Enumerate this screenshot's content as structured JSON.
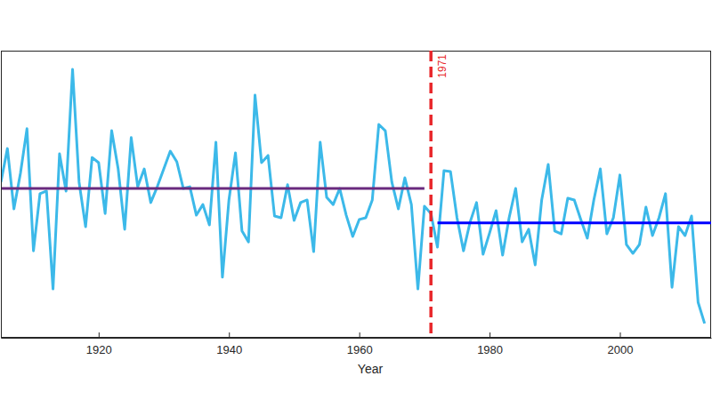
{
  "chart_data": {
    "type": "line",
    "xlabel": "Year",
    "xlim": [
      1905,
      2014
    ],
    "ylim": [
      0,
      100
    ],
    "xticks": [
      1920,
      1940,
      1960,
      1980,
      2000
    ],
    "tick_labels": "x",
    "grid": false,
    "series": [
      {
        "color": "#3cb9e9",
        "line_style": "solid",
        "x": [
          1905,
          1906,
          1907,
          1908,
          1909,
          1910,
          1911,
          1912,
          1913,
          1914,
          1915,
          1916,
          1917,
          1918,
          1919,
          1920,
          1921,
          1922,
          1923,
          1924,
          1925,
          1926,
          1927,
          1928,
          1929,
          1930,
          1931,
          1932,
          1933,
          1934,
          1935,
          1936,
          1937,
          1938,
          1939,
          1940,
          1941,
          1942,
          1943,
          1944,
          1945,
          1946,
          1947,
          1948,
          1949,
          1950,
          1951,
          1952,
          1953,
          1954,
          1955,
          1956,
          1957,
          1958,
          1959,
          1960,
          1961,
          1962,
          1963,
          1964,
          1965,
          1966,
          1967,
          1968,
          1969,
          1970,
          1971,
          1972,
          1973,
          1974,
          1975,
          1976,
          1977,
          1978,
          1979,
          1980,
          1981,
          1982,
          1983,
          1984,
          1985,
          1986,
          1987,
          1988,
          1989,
          1990,
          1991,
          1992,
          1993,
          1994,
          1995,
          1996,
          1997,
          1998,
          1999,
          2000,
          2001,
          2002,
          2003,
          2004,
          2005,
          2006,
          2007,
          2008,
          2009,
          2010,
          2011,
          2012,
          2013
        ],
        "values": [
          54.2,
          65.9,
          44.9,
          57.3,
          72.8,
          30.3,
          50.2,
          51.1,
          17,
          64.1,
          51.1,
          93.5,
          54.2,
          38.7,
          62.8,
          61,
          43.3,
          72.1,
          58.8,
          37.8,
          69.7,
          52.6,
          58.8,
          47.1,
          52.6,
          58.8,
          65,
          61.3,
          52,
          52.6,
          42.7,
          46.4,
          39.3,
          68.1,
          21.1,
          48,
          64.4,
          37.2,
          33.4,
          84.5,
          61,
          63.5,
          42.4,
          41.8,
          53.3,
          40.9,
          47.1,
          48,
          30,
          68.1,
          48.9,
          46.4,
          52,
          42.7,
          35.3,
          41.2,
          41.8,
          48,
          74.3,
          72.1,
          54.2,
          44.9,
          55.7,
          46.4,
          17,
          45.8,
          43.3,
          31.6,
          58.2,
          57.9,
          41.8,
          30.3,
          40.2,
          47.1,
          29.1,
          36.5,
          44.3,
          28.8,
          41.8,
          52,
          33.4,
          37.8,
          25.4,
          48,
          60.4,
          37.2,
          36.2,
          48.6,
          48,
          41.2,
          34.7,
          48,
          58.8,
          36.2,
          41.8,
          56.7,
          32.5,
          29.4,
          32.5,
          45.5,
          35.6,
          41.8,
          50.2,
          17.6,
          38.7,
          35.6,
          42.4,
          12.4,
          5
        ]
      },
      {
        "color": "#6a2a7e",
        "line_style": "solid",
        "x": [
          1905,
          1970
        ],
        "values": [
          52,
          52
        ]
      },
      {
        "color": "#0000ff",
        "line_style": "solid",
        "x": [
          1972,
          2014
        ],
        "values": [
          40,
          40
        ]
      }
    ],
    "vline": {
      "x": 1971,
      "label": "1971",
      "color": "#e8262a",
      "line_style": "dashed"
    }
  }
}
